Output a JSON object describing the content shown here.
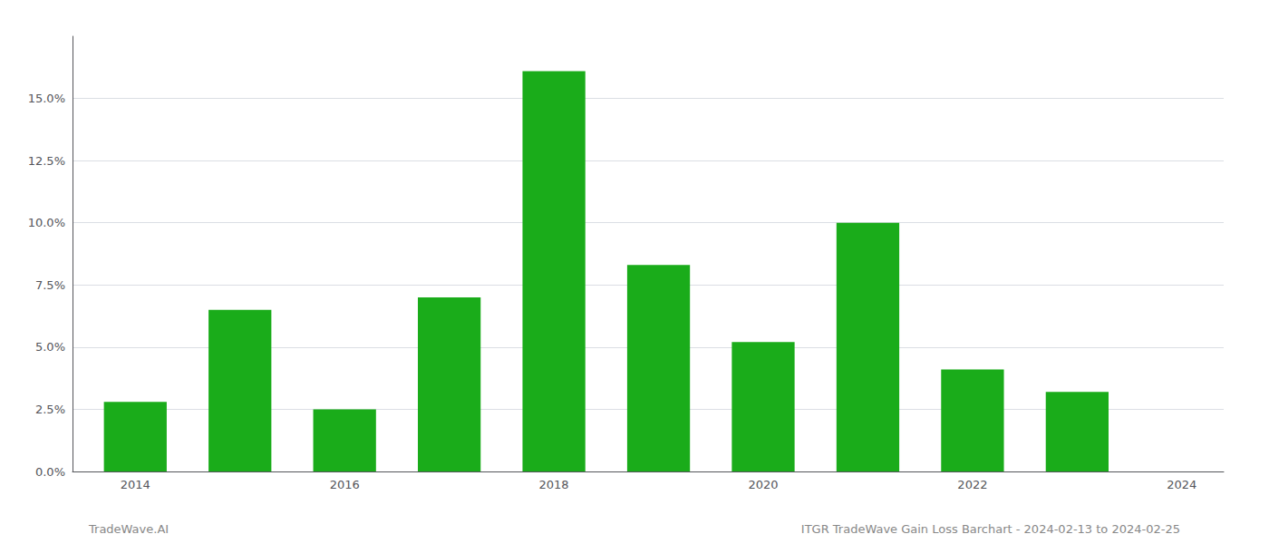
{
  "chart_data": {
    "type": "bar",
    "x": [
      2014,
      2015,
      2016,
      2017,
      2018,
      2019,
      2020,
      2021,
      2022,
      2023
    ],
    "values": [
      0.028,
      0.065,
      0.025,
      0.07,
      0.161,
      0.083,
      0.052,
      0.1,
      0.041,
      0.032
    ],
    "color": "#1aac1a",
    "xlim": [
      2013.4,
      2024.4
    ],
    "xticks": [
      2014,
      2016,
      2018,
      2020,
      2022,
      2024
    ],
    "ylim": [
      0,
      0.175
    ],
    "yticks": [
      {
        "value": 0.0,
        "label": "0.0%"
      },
      {
        "value": 0.025,
        "label": "2.5%"
      },
      {
        "value": 0.05,
        "label": "5.0%"
      },
      {
        "value": 0.075,
        "label": "7.5%"
      },
      {
        "value": 0.1,
        "label": "10.0%"
      },
      {
        "value": 0.125,
        "label": "12.5%"
      },
      {
        "value": 0.15,
        "label": "15.0%"
      }
    ],
    "grid": true,
    "annotations": [
      "TradeWave.AI",
      "ITGR TradeWave Gain Loss Barchart - 2024-02-13 to 2024-02-25"
    ]
  }
}
